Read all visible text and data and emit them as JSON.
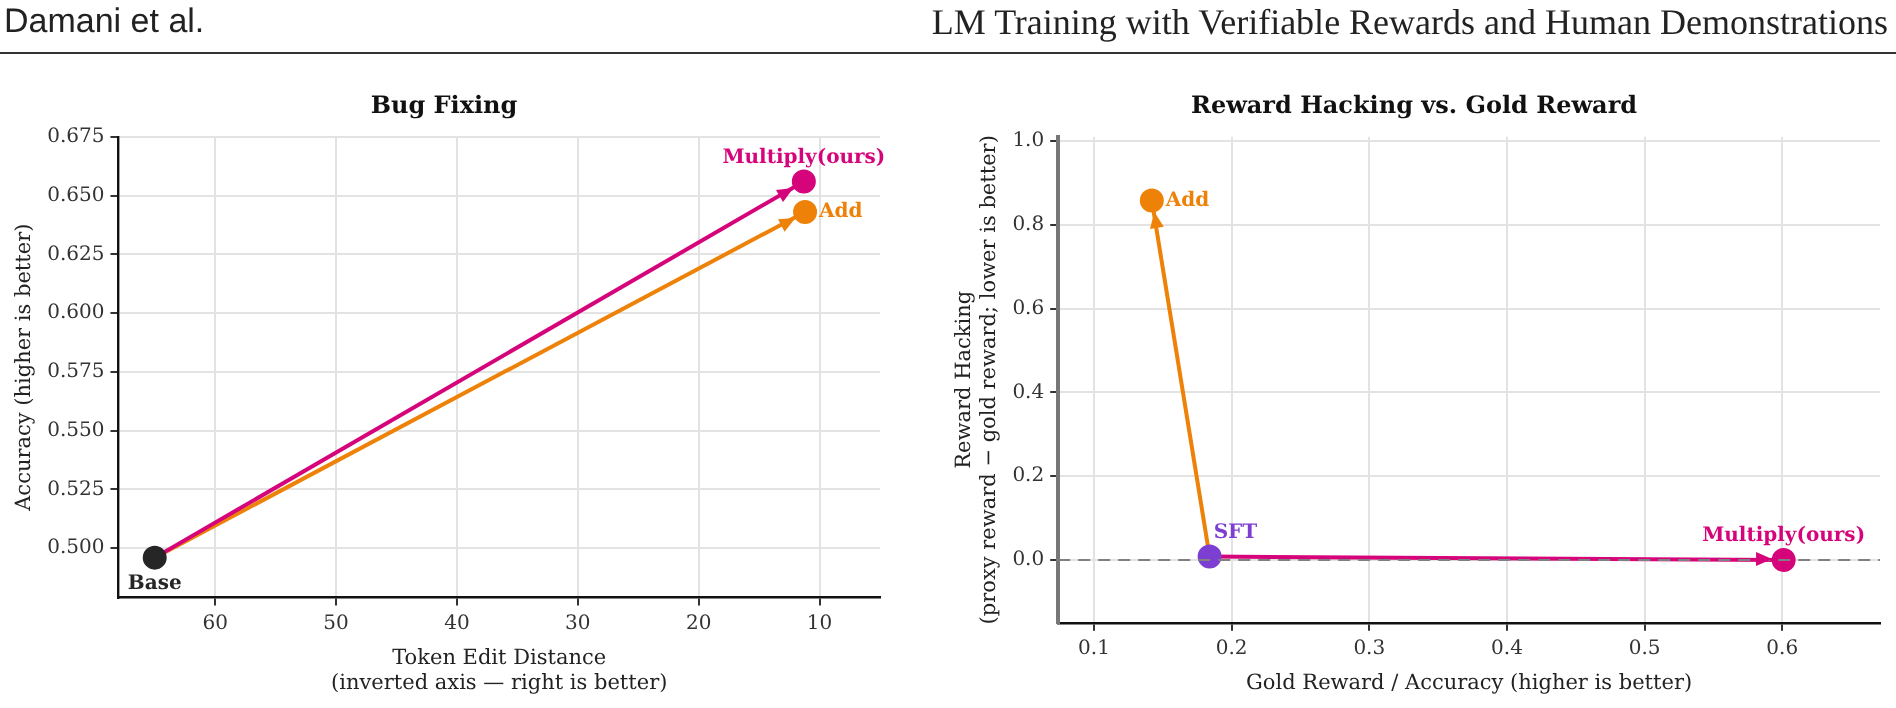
{
  "chart_data": [
    {
      "type": "scatter",
      "title": "Bug Fixing",
      "xlabel": "Token Edit Distance\n(inverted axis — right is better)",
      "ylabel": "Accuracy (higher is better)",
      "annotations": [
        "Damani et al.",
        "LM Training with Verifiable Rewards and Human Demonstrations"
      ],
      "marker": "circle",
      "grid": true,
      "xlim": [
        68,
        5
      ],
      "xticks": [
        60,
        50,
        40,
        30,
        20,
        10
      ],
      "ylim": [
        0.479,
        0.675
      ],
      "yticks": [
        {
          "value": 0.5,
          "label": "0.500"
        },
        {
          "value": 0.525,
          "label": "0.525"
        },
        {
          "value": 0.55,
          "label": "0.550"
        },
        {
          "value": 0.575,
          "label": "0.575"
        },
        {
          "value": 0.6,
          "label": "0.600"
        },
        {
          "value": 0.625,
          "label": "0.625"
        },
        {
          "value": 0.65,
          "label": "0.650"
        },
        {
          "value": 0.675,
          "label": "0.675"
        }
      ],
      "series": [
        {
          "name": "Base",
          "color": "#262626",
          "x": [
            65
          ],
          "values": [
            0.496
          ]
        },
        {
          "name": "Multiply(ours)",
          "color": "#d6047a",
          "x": [
            11.3
          ],
          "values": [
            0.656
          ]
        },
        {
          "name": "Add",
          "color": "#ee8208",
          "x": [
            11.2
          ],
          "values": [
            0.643
          ]
        },
        {
          "type": "line",
          "color": "#d6047a",
          "x": [
            65,
            11.3
          ],
          "values": [
            0.496,
            0.656
          ],
          "marker": "none",
          "line_style": "solid"
        },
        {
          "type": "line",
          "color": "#ee8208",
          "x": [
            65,
            11.2
          ],
          "values": [
            0.496,
            0.643
          ],
          "marker": "none",
          "line_style": "solid"
        }
      ]
    },
    {
      "type": "scatter",
      "title": "Reward Hacking vs. Gold Reward",
      "xlabel": "Gold Reward / Accuracy (higher is better)",
      "ylabel": "Reward Hacking\n(proxy reward − gold reward; lower is better)",
      "marker": "circle",
      "grid": true,
      "xlim": [
        0.074,
        0.671
      ],
      "xticks": [
        0.1,
        0.2,
        0.3,
        0.4,
        0.5,
        0.6
      ],
      "ylim": [
        -0.15,
        1.01
      ],
      "yticks": [
        {
          "value": 0,
          "label": "0.0"
        },
        {
          "value": 0.2,
          "label": "0.2"
        },
        {
          "value": 0.4,
          "label": "0.4"
        },
        {
          "value": 0.6,
          "label": "0.6"
        },
        {
          "value": 0.8,
          "label": "0.8"
        },
        {
          "value": 1,
          "label": "1.0"
        }
      ],
      "ref_lines": [
        {
          "axis": "y",
          "value": 0,
          "color": "#808080",
          "line_style": "dashed"
        }
      ],
      "series": [
        {
          "name": "SFT",
          "color": "#7d3fd1",
          "x": [
            0.184
          ],
          "values": [
            0.008
          ]
        },
        {
          "name": "Add",
          "color": "#ee8208",
          "x": [
            0.142
          ],
          "values": [
            0.858
          ]
        },
        {
          "name": "Multiply(ours)",
          "color": "#d6047a",
          "x": [
            0.601
          ],
          "values": [
            0.0
          ]
        },
        {
          "type": "line",
          "color": "#ee8208",
          "x": [
            0.184,
            0.142
          ],
          "values": [
            0.008,
            0.858
          ],
          "marker": "none",
          "line_style": "solid"
        },
        {
          "type": "line",
          "color": "#d6047a",
          "x": [
            0.184,
            0.601
          ],
          "values": [
            0.008,
            0.0
          ],
          "marker": "none",
          "line_style": "solid"
        }
      ]
    }
  ]
}
